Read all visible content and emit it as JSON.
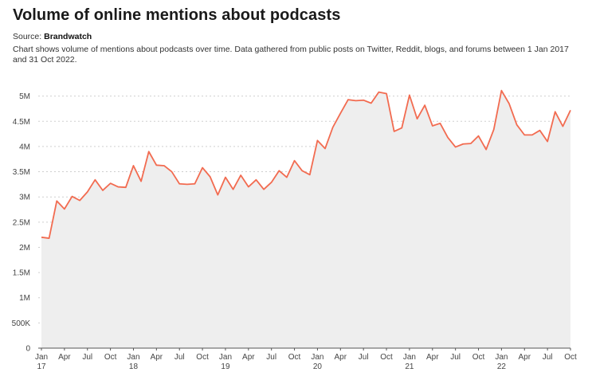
{
  "title": "Volume of online mentions about podcasts",
  "source_label": "Source:",
  "source_name": "Brandwatch",
  "description": "Chart shows volume of mentions about podcasts over time. Data gathered from public posts on Twitter, Reddit, blogs, and forums between 1 Jan 2017 and 31 Oct 2022.",
  "colors": {
    "line": "#f26b50",
    "area": "#eeeeee"
  },
  "chart_data": {
    "type": "area",
    "title": "Volume of online mentions about podcasts",
    "ylim": [
      0,
      5200000
    ],
    "grid": true,
    "y_ticks": [
      {
        "value": 0,
        "label": "0"
      },
      {
        "value": 500000,
        "label": "500K"
      },
      {
        "value": 1000000,
        "label": "1M"
      },
      {
        "value": 1500000,
        "label": "1.5M"
      },
      {
        "value": 2000000,
        "label": "2M"
      },
      {
        "value": 2500000,
        "label": "2.5M"
      },
      {
        "value": 3000000,
        "label": "3M"
      },
      {
        "value": 3500000,
        "label": "3.5M"
      },
      {
        "value": 4000000,
        "label": "4M"
      },
      {
        "value": 4500000,
        "label": "4.5M"
      },
      {
        "value": 5000000,
        "label": "5M"
      }
    ],
    "x_ticks": [
      {
        "month": "2017-01",
        "label": "Jan",
        "year": "17"
      },
      {
        "month": "2017-04",
        "label": "Apr",
        "year": ""
      },
      {
        "month": "2017-07",
        "label": "Jul",
        "year": ""
      },
      {
        "month": "2017-10",
        "label": "Oct",
        "year": ""
      },
      {
        "month": "2018-01",
        "label": "Jan",
        "year": "18"
      },
      {
        "month": "2018-04",
        "label": "Apr",
        "year": ""
      },
      {
        "month": "2018-07",
        "label": "Jul",
        "year": ""
      },
      {
        "month": "2018-10",
        "label": "Oct",
        "year": ""
      },
      {
        "month": "2019-01",
        "label": "Jan",
        "year": "19"
      },
      {
        "month": "2019-04",
        "label": "Apr",
        "year": ""
      },
      {
        "month": "2019-07",
        "label": "Jul",
        "year": ""
      },
      {
        "month": "2019-10",
        "label": "Oct",
        "year": ""
      },
      {
        "month": "2020-01",
        "label": "Jan",
        "year": "20"
      },
      {
        "month": "2020-04",
        "label": "Apr",
        "year": ""
      },
      {
        "month": "2020-07",
        "label": "Jul",
        "year": ""
      },
      {
        "month": "2020-10",
        "label": "Oct",
        "year": ""
      },
      {
        "month": "2021-01",
        "label": "Jan",
        "year": "21"
      },
      {
        "month": "2021-04",
        "label": "Apr",
        "year": ""
      },
      {
        "month": "2021-07",
        "label": "Jul",
        "year": ""
      },
      {
        "month": "2021-10",
        "label": "Oct",
        "year": ""
      },
      {
        "month": "2022-01",
        "label": "Jan",
        "year": "22"
      },
      {
        "month": "2022-04",
        "label": "Apr",
        "year": ""
      },
      {
        "month": "2022-07",
        "label": "Jul",
        "year": ""
      },
      {
        "month": "2022-10",
        "label": "Oct",
        "year": ""
      }
    ],
    "x": [
      "2017-01",
      "2017-02",
      "2017-03",
      "2017-04",
      "2017-05",
      "2017-06",
      "2017-07",
      "2017-08",
      "2017-09",
      "2017-10",
      "2017-11",
      "2017-12",
      "2018-01",
      "2018-02",
      "2018-03",
      "2018-04",
      "2018-05",
      "2018-06",
      "2018-07",
      "2018-08",
      "2018-09",
      "2018-10",
      "2018-11",
      "2018-12",
      "2019-01",
      "2019-02",
      "2019-03",
      "2019-04",
      "2019-05",
      "2019-06",
      "2019-07",
      "2019-08",
      "2019-09",
      "2019-10",
      "2019-11",
      "2019-12",
      "2020-01",
      "2020-02",
      "2020-03",
      "2020-04",
      "2020-05",
      "2020-06",
      "2020-07",
      "2020-08",
      "2020-09",
      "2020-10",
      "2020-11",
      "2020-12",
      "2021-01",
      "2021-02",
      "2021-03",
      "2021-04",
      "2021-05",
      "2021-06",
      "2021-07",
      "2021-08",
      "2021-09",
      "2021-10",
      "2021-11",
      "2021-12",
      "2022-01",
      "2022-02",
      "2022-03",
      "2022-04",
      "2022-05",
      "2022-06",
      "2022-07",
      "2022-08",
      "2022-09",
      "2022-10"
    ],
    "series": [
      {
        "values": [
          2200000,
          2180000,
          2920000,
          2760000,
          3010000,
          2930000,
          3100000,
          3340000,
          3130000,
          3270000,
          3200000,
          3190000,
          3620000,
          3310000,
          3900000,
          3630000,
          3620000,
          3500000,
          3260000,
          3250000,
          3260000,
          3580000,
          3400000,
          3040000,
          3390000,
          3150000,
          3430000,
          3200000,
          3340000,
          3150000,
          3290000,
          3520000,
          3390000,
          3720000,
          3520000,
          3440000,
          4120000,
          3960000,
          4380000,
          4660000,
          4930000,
          4910000,
          4920000,
          4860000,
          5080000,
          5050000,
          4300000,
          4370000,
          5020000,
          4550000,
          4820000,
          4410000,
          4460000,
          4180000,
          3990000,
          4050000,
          4060000,
          4210000,
          3940000,
          4340000,
          5110000,
          4850000,
          4430000,
          4230000,
          4230000,
          4320000,
          4100000,
          4690000,
          4400000,
          4720000
        ]
      }
    ]
  }
}
